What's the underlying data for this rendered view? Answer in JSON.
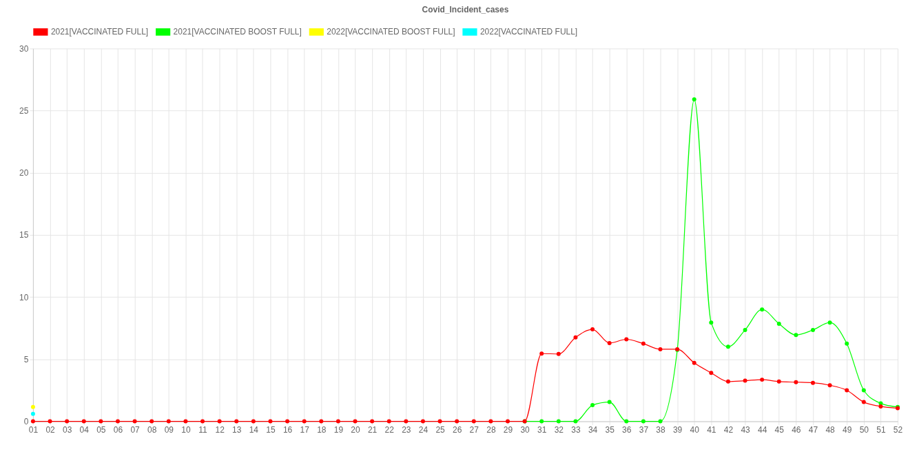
{
  "chart_data": {
    "type": "line",
    "title": "Covid_Incident_cases",
    "categories": [
      "01",
      "02",
      "03",
      "04",
      "05",
      "06",
      "07",
      "08",
      "09",
      "10",
      "11",
      "12",
      "13",
      "14",
      "15",
      "16",
      "17",
      "18",
      "19",
      "20",
      "21",
      "22",
      "23",
      "24",
      "25",
      "26",
      "27",
      "28",
      "29",
      "30",
      "31",
      "32",
      "33",
      "34",
      "35",
      "36",
      "37",
      "38",
      "39",
      "40",
      "41",
      "42",
      "43",
      "44",
      "45",
      "46",
      "47",
      "48",
      "49",
      "50",
      "51",
      "52"
    ],
    "series": [
      {
        "name": "2021[VACCINATED FULL]",
        "color": "#ff0000",
        "values": [
          0,
          0,
          0,
          0,
          0,
          0,
          0,
          0,
          0,
          0,
          0,
          0,
          0,
          0,
          0,
          0,
          0,
          0,
          0,
          0,
          0,
          0,
          0,
          0,
          0,
          0,
          0,
          0,
          0,
          0,
          5.45,
          5.42,
          6.75,
          7.4,
          6.3,
          6.6,
          6.25,
          5.8,
          5.8,
          4.7,
          3.9,
          3.2,
          3.27,
          3.35,
          3.2,
          3.15,
          3.1,
          2.9,
          2.5,
          1.55,
          1.2,
          1.05
        ]
      },
      {
        "name": "2021[VACCINATED BOOST FULL]",
        "color": "#00ff00",
        "values": [
          null,
          null,
          null,
          null,
          null,
          null,
          null,
          null,
          null,
          null,
          null,
          null,
          null,
          null,
          null,
          null,
          null,
          null,
          null,
          null,
          null,
          null,
          null,
          null,
          null,
          null,
          null,
          null,
          null,
          0,
          0,
          0,
          0,
          1.3,
          1.55,
          0,
          0,
          0,
          5.75,
          25.9,
          7.95,
          6.0,
          7.35,
          9.0,
          7.85,
          6.95,
          7.35,
          7.95,
          6.25,
          2.5,
          1.45,
          1.15
        ]
      },
      {
        "name": "2022[VACCINATED BOOST FULL]",
        "color": "#ffff00",
        "values": [
          1.15,
          null,
          null,
          null,
          null,
          null,
          null,
          null,
          null,
          null,
          null,
          null,
          null,
          null,
          null,
          null,
          null,
          null,
          null,
          null,
          null,
          null,
          null,
          null,
          null,
          null,
          null,
          null,
          null,
          null,
          null,
          null,
          null,
          null,
          null,
          null,
          null,
          null,
          null,
          null,
          null,
          null,
          null,
          null,
          null,
          null,
          null,
          null,
          null,
          null,
          null,
          null
        ]
      },
      {
        "name": "2022[VACCINATED FULL]",
        "color": "#00ffff",
        "values": [
          0.6,
          null,
          null,
          null,
          null,
          null,
          null,
          null,
          null,
          null,
          null,
          null,
          null,
          null,
          null,
          null,
          null,
          null,
          null,
          null,
          null,
          null,
          null,
          null,
          null,
          null,
          null,
          null,
          null,
          null,
          null,
          null,
          null,
          null,
          null,
          null,
          null,
          null,
          null,
          null,
          null,
          null,
          null,
          null,
          null,
          null,
          null,
          null,
          null,
          null,
          null,
          null
        ]
      }
    ],
    "ylim": [
      0,
      30
    ],
    "yticks": [
      0,
      5,
      10,
      15,
      20,
      25,
      30
    ],
    "grid": true,
    "legend": "top",
    "marker": "circle",
    "line_style": "solid"
  }
}
